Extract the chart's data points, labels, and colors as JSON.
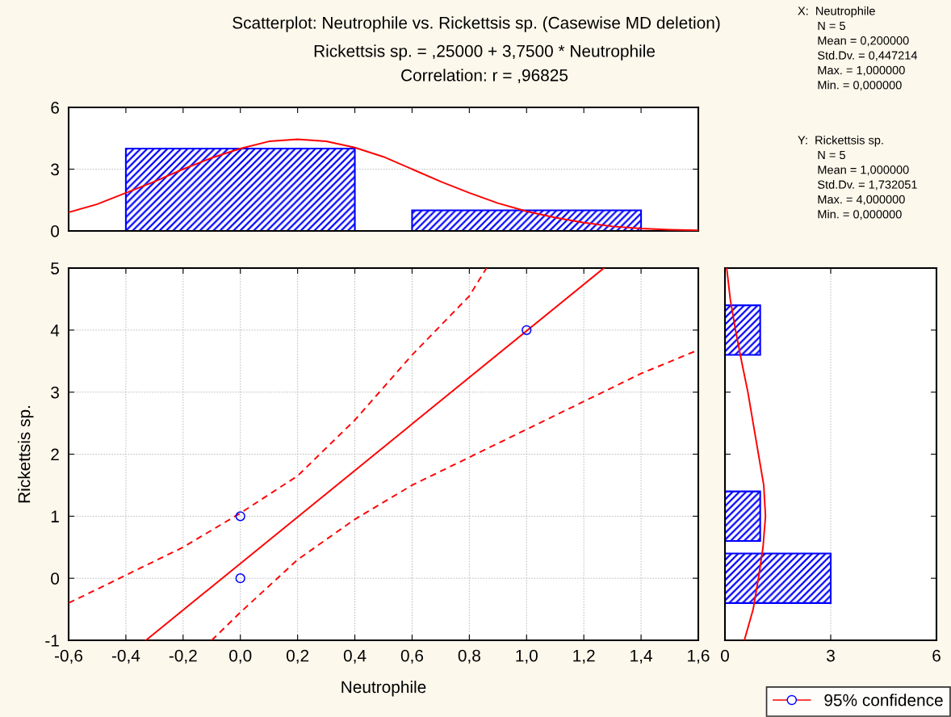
{
  "chart_data": [
    {
      "type": "histogram",
      "title": "Scatterplot: Neutrophile vs. Rickettsis sp. (Casewise MD deletion)",
      "subtitle": "Rickettsis sp. = ,25000 + 3,7500 * Neutrophile\nCorrelation: r = ,96825",
      "annotations": [
        "X:  Neutrophile\n      N = 5\n      Mean = 0,200000\n      Std.Dv. = 0,447214\n      Max. = 1,000000\n      Min. = 0,000000",
        "Y:  Rickettsis sp.\n      N = 5\n      Mean = 1,000000\n      Std.Dv. = 1,732051\n      Max. = 4,000000\n      Min. = 0,000000"
      ],
      "bins": [
        -0.4,
        0.4,
        0.6,
        1.4
      ],
      "values": [
        4,
        0,
        1
      ],
      "color": "#0000ff",
      "series": [
        {
          "type": "line",
          "color": "#ff0000",
          "x": [
            -0.6,
            -0.5,
            -0.4,
            -0.3,
            -0.2,
            -0.1,
            0,
            0.1,
            0.2,
            0.3,
            0.4,
            0.5,
            0.6,
            0.7,
            0.8,
            0.9,
            1.0,
            1.1,
            1.2,
            1.3,
            1.4,
            1.5,
            1.6
          ],
          "values": [
            0.9,
            1.3,
            1.85,
            2.4,
            3.0,
            3.55,
            4.0,
            4.35,
            4.45,
            4.35,
            4.05,
            3.6,
            3.0,
            2.4,
            1.85,
            1.35,
            0.95,
            0.65,
            0.4,
            0.22,
            0.12,
            0.06,
            0.03
          ]
        }
      ],
      "xlim": [
        -0.6,
        1.6
      ],
      "xticks": [
        {
          "value": -0.6,
          "label": null
        },
        {
          "value": -0.4,
          "label": null
        },
        {
          "value": -0.2,
          "label": null
        },
        {
          "value": 0,
          "label": null
        },
        {
          "value": 0.2,
          "label": null
        },
        {
          "value": 0.4,
          "label": null
        },
        {
          "value": 0.6,
          "label": null
        },
        {
          "value": 0.8,
          "label": null
        },
        {
          "value": 1.0,
          "label": null
        },
        {
          "value": 1.2,
          "label": null
        },
        {
          "value": 1.4,
          "label": null
        },
        {
          "value": 1.6,
          "label": null
        }
      ],
      "ylim": [
        0,
        6
      ],
      "yticks": [
        0,
        3,
        6
      ],
      "grid": "y",
      "tick_labels": "y"
    },
    {
      "type": "scatter",
      "xlabel": "Neutrophile",
      "ylabel": "Rickettsis sp.",
      "legend": "bottom right",
      "series": [
        {
          "type": "line",
          "color": "#ff0000",
          "line_style": "solid",
          "x": [
            -0.33,
            1.27
          ],
          "values": [
            -1,
            5
          ]
        },
        {
          "type": "line",
          "color": "#ff0000",
          "line_style": "dashed",
          "x": [
            -0.6,
            -0.4,
            -0.2,
            0,
            0.2,
            0.4,
            0.6,
            0.8,
            0.86
          ],
          "values": [
            -0.4,
            0.05,
            0.5,
            1.05,
            1.65,
            2.55,
            3.6,
            4.55,
            5
          ]
        },
        {
          "type": "line",
          "color": "#ff0000",
          "line_style": "dashed",
          "x": [
            -0.1,
            0,
            0.2,
            0.4,
            0.6,
            0.8,
            1.0,
            1.2,
            1.4,
            1.6
          ],
          "values": [
            -1,
            -0.55,
            0.3,
            0.95,
            1.5,
            1.95,
            2.4,
            2.85,
            3.3,
            3.68
          ]
        },
        {
          "type": "scatter",
          "name": "95% confidence",
          "color": "#0000ff",
          "marker": "circle",
          "x": [
            0,
            0,
            1
          ],
          "values": [
            1,
            0,
            4
          ]
        }
      ],
      "xlim": [
        -0.6,
        1.6
      ],
      "xticks": [
        {
          "value": -0.6,
          "label": "-0,6"
        },
        {
          "value": -0.4,
          "label": "-0,4"
        },
        {
          "value": -0.2,
          "label": "-0,2"
        },
        {
          "value": 0,
          "label": "0,0"
        },
        {
          "value": 0.2,
          "label": "0,2"
        },
        {
          "value": 0.4,
          "label": "0,4"
        },
        {
          "value": 0.6,
          "label": "0,6"
        },
        {
          "value": 0.8,
          "label": "0,8"
        },
        {
          "value": 1.0,
          "label": "1,0"
        },
        {
          "value": 1.2,
          "label": "1,2"
        },
        {
          "value": 1.4,
          "label": "1,4"
        },
        {
          "value": 1.6,
          "label": "1,6"
        }
      ],
      "ylim": [
        -1,
        5
      ],
      "yticks": [
        -1,
        0,
        1,
        2,
        3,
        4,
        5
      ],
      "grid": true
    },
    {
      "type": "histogram",
      "orientation": "horizontal",
      "bins": [
        -0.4,
        0.4,
        0.6,
        1.4,
        3.6,
        4.4
      ],
      "values": [
        3,
        0,
        1,
        0,
        1
      ],
      "color": "#0000ff",
      "series": [
        {
          "type": "line",
          "color": "#ff0000",
          "x": [
            -1,
            -0.5,
            0,
            0.5,
            1,
            1.5,
            2,
            2.5,
            3,
            3.5,
            4,
            4.5,
            5
          ],
          "values": [
            0.55,
            0.8,
            0.95,
            1.08,
            1.15,
            1.1,
            0.95,
            0.8,
            0.65,
            0.47,
            0.3,
            0.15,
            0.05
          ]
        }
      ],
      "xlim": [
        0,
        6
      ],
      "xticks": [
        0,
        3,
        6
      ],
      "ylim": [
        -1,
        5
      ],
      "yticks": [
        {
          "value": -1,
          "label": null
        },
        {
          "value": 0,
          "label": null
        },
        {
          "value": 1,
          "label": null
        },
        {
          "value": 2,
          "label": null
        },
        {
          "value": 3,
          "label": null
        },
        {
          "value": 4,
          "label": null
        },
        {
          "value": 5,
          "label": null
        }
      ],
      "grid": "x",
      "tick_labels": "x"
    }
  ]
}
